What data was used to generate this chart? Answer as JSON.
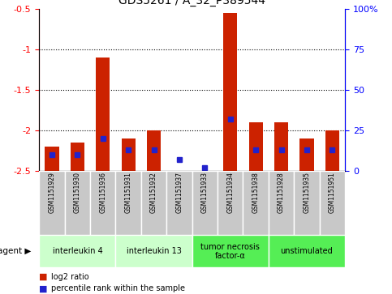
{
  "title": "GDS5261 / A_32_P389544",
  "samples": [
    "GSM1151929",
    "GSM1151930",
    "GSM1151936",
    "GSM1151931",
    "GSM1151932",
    "GSM1151937",
    "GSM1151933",
    "GSM1151934",
    "GSM1151938",
    "GSM1151928",
    "GSM1151935",
    "GSM1151951"
  ],
  "log2_ratio": [
    -2.2,
    -2.15,
    -1.1,
    -2.1,
    -2.0,
    -2.5,
    -2.5,
    -0.55,
    -1.9,
    -1.9,
    -2.1,
    -2.0
  ],
  "percentile_rank": [
    10,
    10,
    20,
    13,
    13,
    7,
    2,
    32,
    13,
    13,
    13,
    13
  ],
  "agents": [
    {
      "label": "interleukin 4",
      "start": 0,
      "end": 3,
      "color": "#ccffcc"
    },
    {
      "label": "interleukin 13",
      "start": 3,
      "end": 6,
      "color": "#ccffcc"
    },
    {
      "label": "tumor necrosis\nfactor-α",
      "start": 6,
      "end": 9,
      "color": "#55ee55"
    },
    {
      "label": "unstimulated",
      "start": 9,
      "end": 12,
      "color": "#55ee55"
    }
  ],
  "ylim_min": -2.5,
  "ylim_max": -0.5,
  "pct_min": 0,
  "pct_max": 100,
  "left_yticks": [
    -2.5,
    -2.0,
    -1.5,
    -1.0,
    -0.5
  ],
  "left_yticklabels": [
    "-2.5",
    "-2",
    "-1.5",
    "-1",
    "-0.5"
  ],
  "right_yticks": [
    0,
    25,
    50,
    75,
    100
  ],
  "right_yticklabels": [
    "0",
    "25",
    "50",
    "75",
    "100%"
  ],
  "grid_lines": [
    -1.0,
    -1.5,
    -2.0
  ],
  "bar_color": "#cc2200",
  "blue_color": "#2222cc",
  "sample_bg_color": "#c8c8c8",
  "bar_width": 0.55,
  "legend_log2": "log2 ratio",
  "legend_pct": "percentile rank within the sample"
}
